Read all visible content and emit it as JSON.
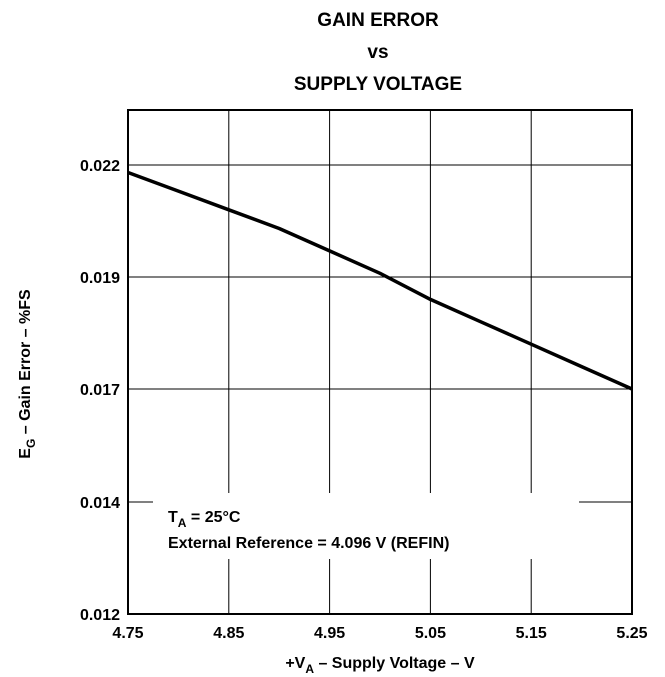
{
  "chart_data": {
    "type": "line",
    "title_lines": [
      "GAIN ERROR",
      "vs",
      "SUPPLY VOLTAGE"
    ],
    "xlabel": {
      "main": "+V",
      "sub": "A",
      "rest": " – Supply Voltage – V"
    },
    "ylabel": {
      "main": "E",
      "sub": "G",
      "rest": " – Gain Error – %FS"
    },
    "xlim": [
      4.75,
      5.25
    ],
    "ylim": [
      0.012,
      0.024
    ],
    "x_ticks": [
      4.75,
      4.85,
      4.95,
      5.05,
      5.15,
      5.25
    ],
    "x_tick_labels": [
      "4.75",
      "4.85",
      "4.95",
      "5.05",
      "5.15",
      "5.25"
    ],
    "y_ticks": [
      0.012,
      0.014,
      0.017,
      0.019,
      0.022
    ],
    "y_tick_labels": [
      "0.012",
      "0.014",
      "0.017",
      "0.019",
      "0.022"
    ],
    "grid": true,
    "series": [
      {
        "x": [
          4.75,
          4.8,
          4.85,
          4.9,
          4.95,
          5.0,
          5.05,
          5.1,
          5.15,
          5.2,
          5.25
        ],
        "y": [
          0.0218,
          0.0213,
          0.0208,
          0.0203,
          0.0197,
          0.0191,
          0.0186,
          0.0182,
          0.0178,
          0.0174,
          0.017
        ]
      }
    ],
    "annotation": {
      "line1_main": "T",
      "line1_sub": "A",
      "line1_rest": " = 25°C",
      "line2": "External Reference = 4.096 V (REFIN)"
    }
  }
}
